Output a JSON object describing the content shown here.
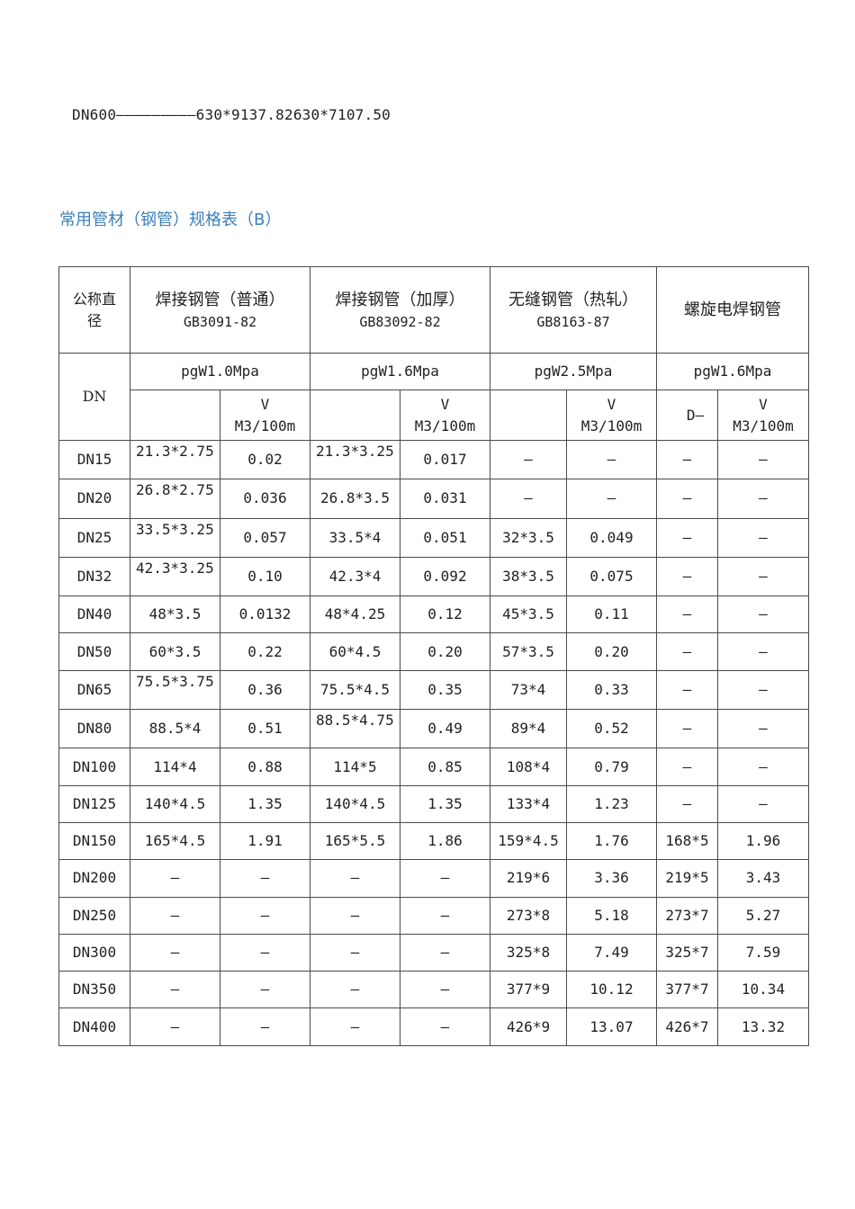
{
  "top_line": "DN600—————————630*9137.82630*7107.50",
  "section_title": "常用管材（钢管）规格表（B）",
  "table": {
    "corner_top": "公称直径",
    "corner_bottom": "DN",
    "groups": [
      {
        "title": "焊接钢管（普通）",
        "standard": "GB3091-82",
        "pressure": "pgW1.0Mpa",
        "sub_left": "",
        "sub_right": "V\nM3/100m"
      },
      {
        "title": "焊接钢管（加厚）",
        "standard": "GB83092-82",
        "pressure": "pgW1.6Mpa",
        "sub_left": "",
        "sub_right": "V\nM3/100m"
      },
      {
        "title": "无缝钢管（热轧）",
        "standard": "GB8163-87",
        "pressure": "pgW2.5Mpa",
        "sub_left": "",
        "sub_right": "V\nM3/100m"
      },
      {
        "title": "螺旋电焊钢管",
        "standard": "",
        "pressure": "pgW1.6Mpa",
        "sub_left": "D—",
        "sub_right": "V\nM3/100m"
      }
    ],
    "rows": [
      [
        "DN15",
        "21.3*2.75",
        "0.02",
        "21.3*3.25",
        "0.017",
        "—",
        "—",
        "—",
        "—"
      ],
      [
        "DN20",
        "26.8*2.75",
        "0.036",
        "26.8*3.5",
        "0.031",
        "—",
        "—",
        "—",
        "—"
      ],
      [
        "DN25",
        "33.5*3.25",
        "0.057",
        "33.5*4",
        "0.051",
        "32*3.5",
        "0.049",
        "—",
        "—"
      ],
      [
        "DN32",
        "42.3*3.25",
        "0.10",
        "42.3*4",
        "0.092",
        "38*3.5",
        "0.075",
        "—",
        "—"
      ],
      [
        "DN40",
        "48*3.5",
        "0.0132",
        "48*4.25",
        "0.12",
        "45*3.5",
        "0.11",
        "—",
        "—"
      ],
      [
        "DN50",
        "60*3.5",
        "0.22",
        "60*4.5",
        "0.20",
        "57*3.5",
        "0.20",
        "—",
        "—"
      ],
      [
        "DN65",
        "75.5*3.75",
        "0.36",
        "75.5*4.5",
        "0.35",
        "73*4",
        "0.33",
        "—",
        "—"
      ],
      [
        "DN80",
        "88.5*4",
        "0.51",
        "88.5*4.75",
        "0.49",
        "89*4",
        "0.52",
        "—",
        "—"
      ],
      [
        "DN100",
        "114*4",
        "0.88",
        "114*5",
        "0.85",
        "108*4",
        "0.79",
        "—",
        "—"
      ],
      [
        "DN125",
        "140*4.5",
        "1.35",
        "140*4.5",
        "1.35",
        "133*4",
        "1.23",
        "—",
        "—"
      ],
      [
        "DN150",
        "165*4.5",
        "1.91",
        "165*5.5",
        "1.86",
        "159*4.5",
        "1.76",
        "168*5",
        "1.96"
      ],
      [
        "DN200",
        "—",
        "—",
        "—",
        "—",
        "219*6",
        "3.36",
        "219*5",
        "3.43"
      ],
      [
        "DN250",
        "—",
        "—",
        "—",
        "—",
        "273*8",
        "5.18",
        "273*7",
        "5.27"
      ],
      [
        "DN300",
        "—",
        "—",
        "—",
        "—",
        "325*8",
        "7.49",
        "325*7",
        "7.59"
      ],
      [
        "DN350",
        "—",
        "—",
        "—",
        "—",
        "377*9",
        "10.12",
        "377*7",
        "10.34"
      ],
      [
        "DN400",
        "—",
        "—",
        "—",
        "—",
        "426*9",
        "13.07",
        "426*7",
        "13.32"
      ]
    ]
  }
}
